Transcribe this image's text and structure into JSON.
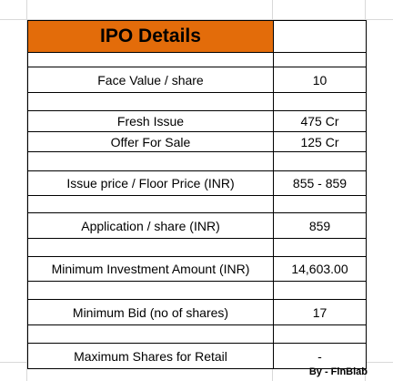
{
  "title": "IPO Details",
  "rows": [
    {
      "label": "",
      "value": ""
    },
    {
      "label": "Face Value / share",
      "value": "10"
    },
    {
      "label": "",
      "value": ""
    },
    {
      "label": "Fresh Issue",
      "value": "475 Cr"
    },
    {
      "label": "Offer For Sale",
      "value": "125 Cr"
    },
    {
      "label": "",
      "value": ""
    },
    {
      "label": "Issue price / Floor Price (INR)",
      "value": "855 - 859"
    },
    {
      "label": "",
      "value": ""
    },
    {
      "label": "Application / share (INR)",
      "value": "859"
    },
    {
      "label": "",
      "value": ""
    },
    {
      "label": "Minimum Investment Amount (INR)",
      "value": "14,603.00"
    },
    {
      "label": "",
      "value": ""
    },
    {
      "label": "Minimum Bid (no of shares)",
      "value": "17"
    },
    {
      "label": "",
      "value": ""
    },
    {
      "label": "Maximum Shares for Retail",
      "value": "-"
    }
  ],
  "footer": "By - FinBlab",
  "colors": {
    "title_fill": "#e36c0a",
    "gridline": "#d9d9d9",
    "border": "#000000"
  }
}
